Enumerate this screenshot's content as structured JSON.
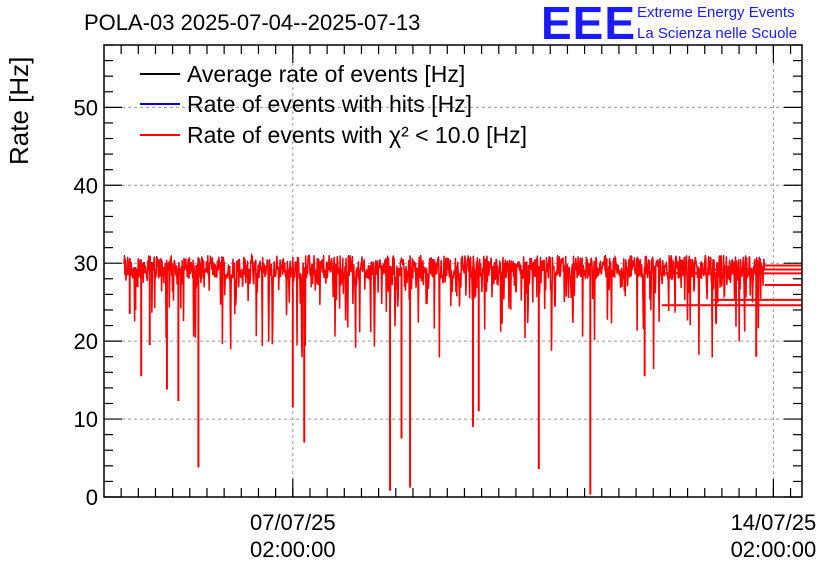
{
  "header": {
    "title": "POLA-03 2025-07-04--2025-07-13",
    "logo_text": "EEE",
    "logo_line1": "Extreme Energy Events",
    "logo_line2": "La Scienza nelle Scuole"
  },
  "colors": {
    "average": "#000000",
    "hits": "#0000cc",
    "chi2": "#ff0000",
    "logo": "#1a1aff"
  },
  "chart_data": {
    "type": "line",
    "ylabel": "Rate [Hz]",
    "ylim": [
      0,
      58
    ],
    "yticks": [
      0,
      10,
      20,
      30,
      40,
      50
    ],
    "x_ticks": [
      {
        "line1": "07/07/25",
        "line2": "02:00:00",
        "pos": "2025-07-07 02:00:00"
      },
      {
        "line1": "14/07/25",
        "line2": "02:00:00",
        "pos": "2025-07-14 02:00:00"
      }
    ],
    "xlim": [
      "2025-07-04 08:00:00",
      "2025-07-14 12:00:00"
    ],
    "data_range": [
      "2025-07-04 15:00:00",
      "2025-07-13 23:00:00"
    ],
    "grid": true,
    "legend_placement": "top-left",
    "series": [
      {
        "name": "Average rate of events [Hz]",
        "key": "average",
        "baseline": 29.5,
        "noise": 1.5
      },
      {
        "name": "Rate of events with hits [Hz]",
        "key": "hits",
        "baseline": 29.5,
        "noise": 1.5
      },
      {
        "name": "Rate of events with χ² < 10.0 [Hz]",
        "key": "chi2",
        "baseline": 29.5,
        "noise": 1.5
      },
      {
        "name": "",
        "key": "chi2_flat",
        "values": [
          29.7,
          29.2,
          28.7,
          27.2,
          25.3,
          24.6
        ]
      }
    ],
    "dips": [
      {
        "t": "2025-07-04 17:00:00",
        "y": 23.5
      },
      {
        "t": "2025-07-04 19:00:00",
        "y": 24.0
      },
      {
        "t": "2025-07-04 21:00:00",
        "y": 15.5
      },
      {
        "t": "2025-07-05 00:00:00",
        "y": 19.5
      },
      {
        "t": "2025-07-05 06:00:00",
        "y": 13.8
      },
      {
        "t": "2025-07-05 10:00:00",
        "y": 12.3
      },
      {
        "t": "2025-07-05 17:00:00",
        "y": 3.8
      },
      {
        "t": "2025-07-07 02:00:00",
        "y": 11.5
      },
      {
        "t": "2025-07-07 06:00:00",
        "y": 7.0
      },
      {
        "t": "2025-07-08 12:00:00",
        "y": 0.8
      },
      {
        "t": "2025-07-08 16:00:00",
        "y": 7.5
      },
      {
        "t": "2025-07-08 19:00:00",
        "y": 1.2
      },
      {
        "t": "2025-07-09 17:00:00",
        "y": 9.0
      },
      {
        "t": "2025-07-09 19:00:00",
        "y": 11.0
      },
      {
        "t": "2025-07-10 16:00:00",
        "y": 3.6
      },
      {
        "t": "2025-07-11 10:00:00",
        "y": 0.3
      },
      {
        "t": "2025-07-12 05:00:00",
        "y": 15.5
      },
      {
        "t": "2025-07-13 20:00:00",
        "y": 18.0
      }
    ]
  }
}
